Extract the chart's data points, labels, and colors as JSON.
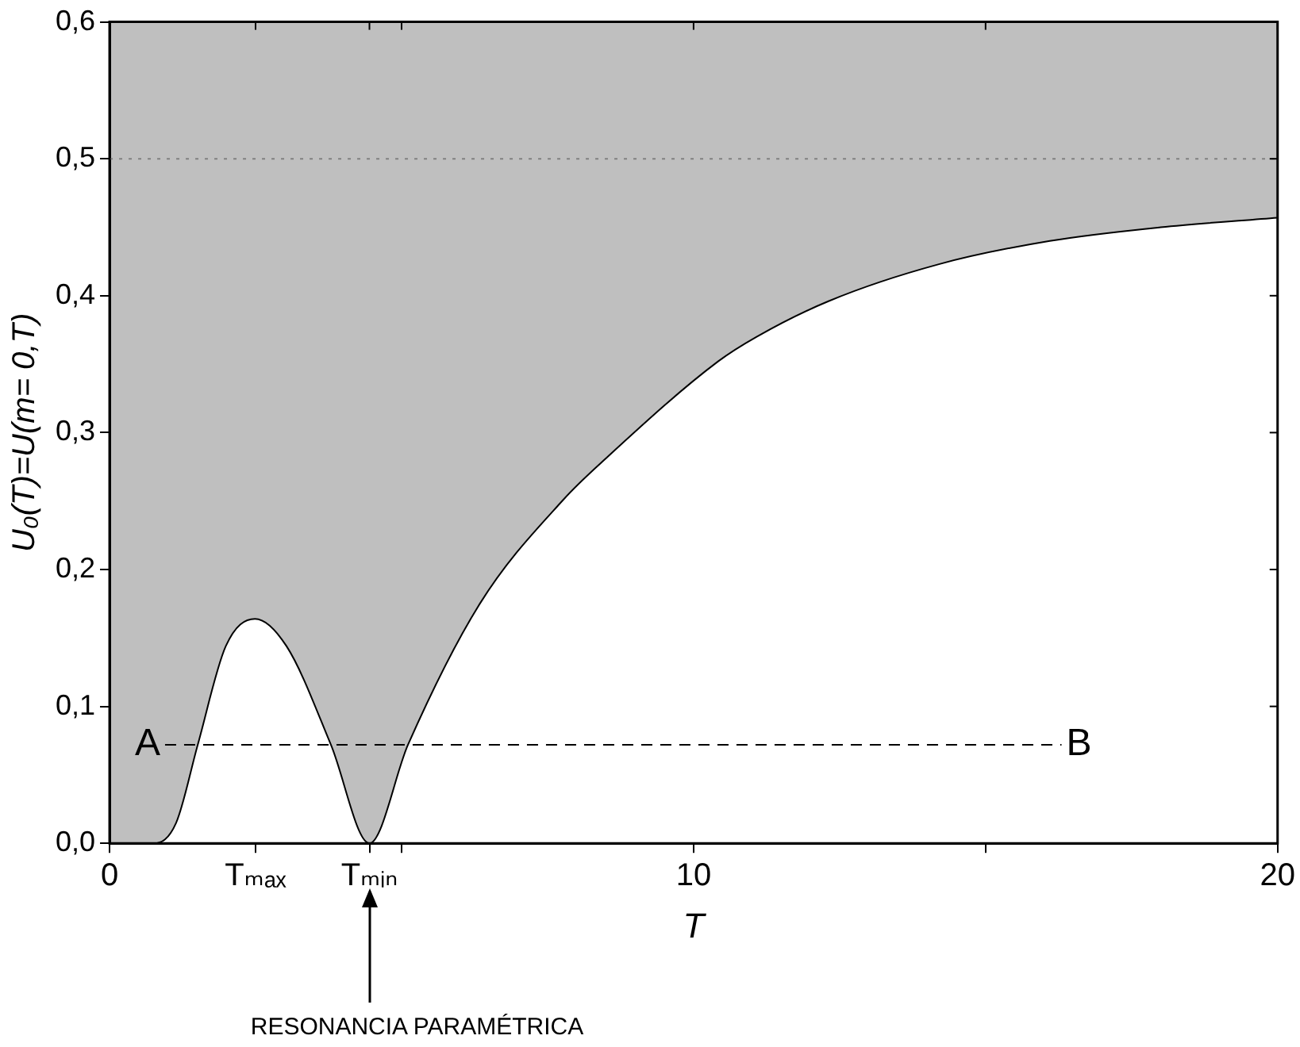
{
  "chart_data": {
    "type": "line",
    "xlabel": "T",
    "ylabel": "U₀(T)=U(m= 0,T)",
    "xlim": [
      0,
      20
    ],
    "ylim": [
      0,
      0.6
    ],
    "xticks": [
      0,
      {
        "value": 2.5,
        "label": "Tₘₐₓ"
      },
      {
        "value": 4.45,
        "label": "Tₘᵢₙ"
      },
      {
        "value": 5,
        "label": null
      },
      10,
      {
        "value": 15,
        "label": null
      },
      20
    ],
    "yticks": [
      {
        "value": 0,
        "label": "0,0"
      },
      {
        "value": 0.1,
        "label": "0,1"
      },
      {
        "value": 0.2,
        "label": "0,2"
      },
      {
        "value": 0.3,
        "label": "0,3"
      },
      {
        "value": 0.4,
        "label": "0,4"
      },
      {
        "value": 0.5,
        "label": "0,5"
      },
      {
        "value": 0.6,
        "label": "0,6"
      }
    ],
    "marker": "none",
    "series": [
      {
        "color": "#000000",
        "x": [
          0,
          0.76,
          1.14,
          1.51,
          1.99,
          2.49,
          3.03,
          3.79,
          4.45,
          5.11,
          6.34,
          7.77,
          8.52,
          10.42,
          11.08,
          12.31,
          14.2,
          16.1,
          18.0,
          20
        ],
        "values": [
          0,
          0,
          0.015,
          0.072,
          0.144,
          0.164,
          0.144,
          0.072,
          0,
          0.072,
          0.175,
          0.251,
          0.282,
          0.352,
          0.37,
          0.396,
          0.423,
          0.44,
          0.45,
          0.457
        ],
        "lower": [
          0,
          0,
          0.015,
          0.072,
          0.144,
          0.164,
          0.144,
          0.072,
          0,
          0.072,
          0.175,
          0.251,
          0.282,
          0.352,
          0.37,
          0.396,
          0.423,
          0.44,
          0.45,
          0.457
        ],
        "upper": [
          0.6,
          0.6,
          0.6,
          0.6,
          0.6,
          0.6,
          0.6,
          0.6,
          0.6,
          0.6,
          0.6,
          0.6,
          0.6,
          0.6,
          0.6,
          0.6,
          0.6,
          0.6,
          0.6,
          0.6
        ]
      },
      {
        "type": "line",
        "color": "#000000",
        "line_style": "dashed",
        "x": [
          0.95,
          16.3
        ],
        "values": [
          0.072,
          0.072
        ]
      }
    ],
    "ref_lines": [
      {
        "axis": "y",
        "value": 0.5,
        "color": "#808080",
        "line_style": "dotted"
      }
    ],
    "annotations": [
      {
        "text": "A",
        "x": 0.95,
        "y": 0.072
      },
      {
        "text": "B",
        "x": 16.3,
        "y": 0.072
      },
      "RESONANCIA PARAMÉTRICA"
    ]
  }
}
